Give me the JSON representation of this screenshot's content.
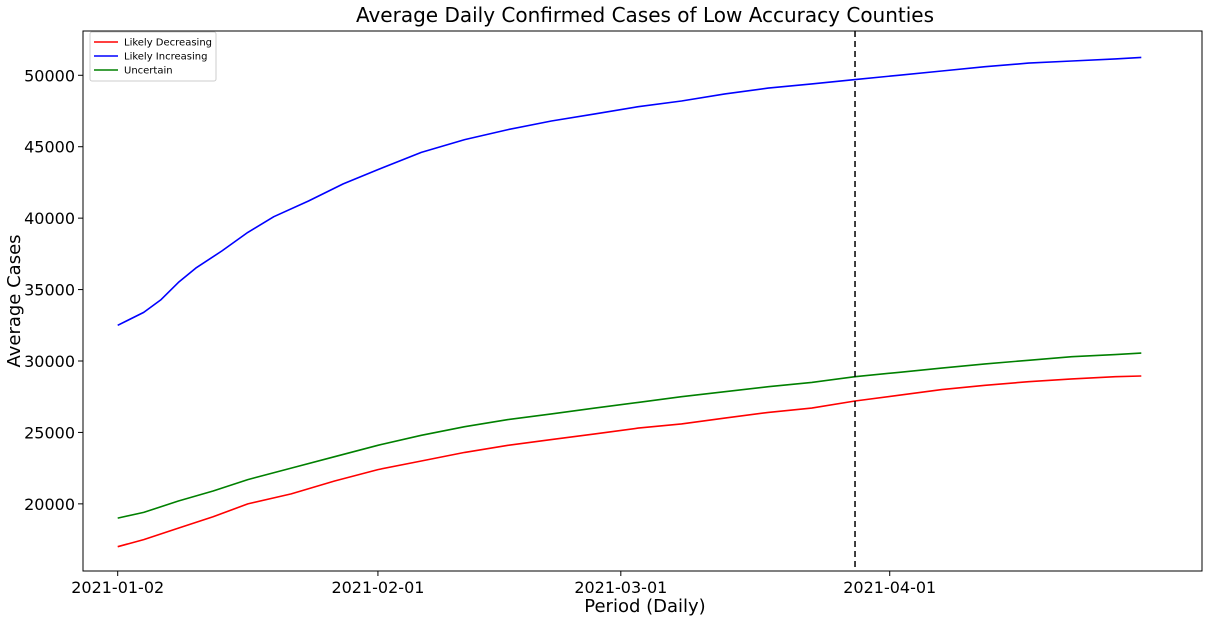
{
  "chart_data": {
    "type": "line",
    "title": "Average Daily Confirmed Cases of Low Accuracy Counties",
    "xlabel": "Period (Daily)",
    "ylabel": "Average Cases",
    "x_range": [
      "2020-12-29",
      "2021-05-07"
    ],
    "ylim": [
      15300,
      53100
    ],
    "x_ticks": [
      "2021-01-02",
      "2021-02-01",
      "2021-03-01",
      "2021-04-01"
    ],
    "y_ticks": [
      20000,
      25000,
      30000,
      35000,
      40000,
      45000,
      50000
    ],
    "grid": false,
    "legend": "top-left",
    "vline": {
      "x": "2021-03-28",
      "style": "dashed",
      "color": "#000000"
    },
    "series": [
      {
        "name": "Likely Decreasing",
        "color": "#ff0000",
        "points": [
          [
            "2021-01-02",
            17000
          ],
          [
            "2021-01-05",
            17500
          ],
          [
            "2021-01-09",
            18300
          ],
          [
            "2021-01-13",
            19100
          ],
          [
            "2021-01-17",
            20000
          ],
          [
            "2021-01-22",
            20700
          ],
          [
            "2021-01-27",
            21600
          ],
          [
            "2021-02-01",
            22400
          ],
          [
            "2021-02-06",
            23000
          ],
          [
            "2021-02-11",
            23600
          ],
          [
            "2021-02-16",
            24100
          ],
          [
            "2021-02-21",
            24500
          ],
          [
            "2021-02-26",
            24900
          ],
          [
            "2021-03-03",
            25300
          ],
          [
            "2021-03-08",
            25600
          ],
          [
            "2021-03-13",
            26000
          ],
          [
            "2021-03-18",
            26400
          ],
          [
            "2021-03-23",
            26700
          ],
          [
            "2021-03-28",
            27200
          ],
          [
            "2021-04-02",
            27600
          ],
          [
            "2021-04-07",
            28000
          ],
          [
            "2021-04-12",
            28300
          ],
          [
            "2021-04-17",
            28550
          ],
          [
            "2021-04-22",
            28750
          ],
          [
            "2021-04-27",
            28900
          ],
          [
            "2021-04-30",
            28950
          ]
        ]
      },
      {
        "name": "Likely Increasing",
        "color": "#0000ff",
        "points": [
          [
            "2021-01-02",
            32500
          ],
          [
            "2021-01-05",
            33400
          ],
          [
            "2021-01-07",
            34300
          ],
          [
            "2021-01-09",
            35500
          ],
          [
            "2021-01-11",
            36500
          ],
          [
            "2021-01-14",
            37700
          ],
          [
            "2021-01-17",
            39000
          ],
          [
            "2021-01-20",
            40100
          ],
          [
            "2021-01-24",
            41200
          ],
          [
            "2021-01-28",
            42400
          ],
          [
            "2021-02-01",
            43400
          ],
          [
            "2021-02-06",
            44600
          ],
          [
            "2021-02-11",
            45500
          ],
          [
            "2021-02-16",
            46200
          ],
          [
            "2021-02-21",
            46800
          ],
          [
            "2021-02-26",
            47300
          ],
          [
            "2021-03-03",
            47800
          ],
          [
            "2021-03-08",
            48200
          ],
          [
            "2021-03-13",
            48700
          ],
          [
            "2021-03-18",
            49100
          ],
          [
            "2021-03-23",
            49400
          ],
          [
            "2021-03-28",
            49700
          ],
          [
            "2021-04-02",
            50000
          ],
          [
            "2021-04-07",
            50300
          ],
          [
            "2021-04-12",
            50600
          ],
          [
            "2021-04-17",
            50850
          ],
          [
            "2021-04-22",
            51000
          ],
          [
            "2021-04-27",
            51150
          ],
          [
            "2021-04-30",
            51250
          ]
        ]
      },
      {
        "name": "Uncertain",
        "color": "#008000",
        "points": [
          [
            "2021-01-02",
            19000
          ],
          [
            "2021-01-05",
            19400
          ],
          [
            "2021-01-09",
            20200
          ],
          [
            "2021-01-13",
            20900
          ],
          [
            "2021-01-17",
            21700
          ],
          [
            "2021-01-22",
            22500
          ],
          [
            "2021-01-27",
            23300
          ],
          [
            "2021-02-01",
            24100
          ],
          [
            "2021-02-06",
            24800
          ],
          [
            "2021-02-11",
            25400
          ],
          [
            "2021-02-16",
            25900
          ],
          [
            "2021-02-21",
            26300
          ],
          [
            "2021-02-26",
            26700
          ],
          [
            "2021-03-03",
            27100
          ],
          [
            "2021-03-08",
            27500
          ],
          [
            "2021-03-13",
            27850
          ],
          [
            "2021-03-18",
            28200
          ],
          [
            "2021-03-23",
            28500
          ],
          [
            "2021-03-28",
            28900
          ],
          [
            "2021-04-02",
            29200
          ],
          [
            "2021-04-07",
            29500
          ],
          [
            "2021-04-12",
            29800
          ],
          [
            "2021-04-17",
            30050
          ],
          [
            "2021-04-22",
            30300
          ],
          [
            "2021-04-27",
            30450
          ],
          [
            "2021-04-30",
            30550
          ]
        ]
      }
    ]
  }
}
